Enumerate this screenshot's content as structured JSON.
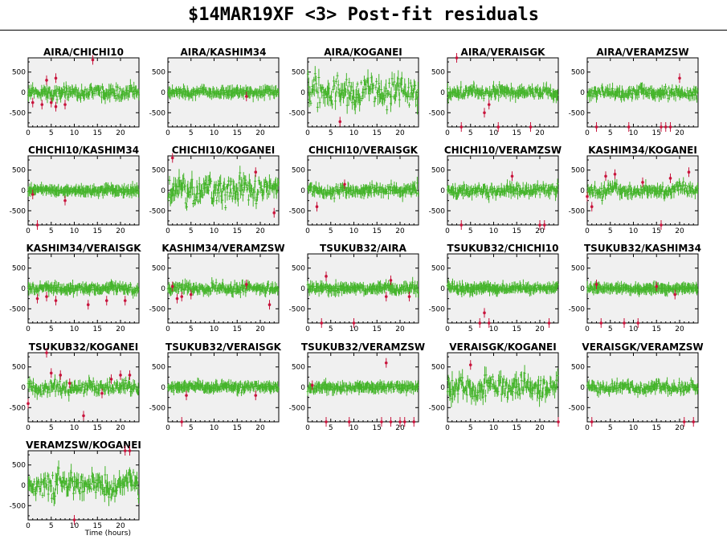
{
  "title": "$14MAR19XF <3> Post-fit residuals",
  "colors": {
    "background": "#ffffff",
    "panel_fill": "#f0f0f0",
    "residual_points": "#44b42a",
    "outlier_points": "#c8143c",
    "axis": "#000000"
  },
  "chart_data": [
    {
      "type": "scatter",
      "title": "AIRA/CHICHI10",
      "xlim": [
        0,
        24
      ],
      "ylim": [
        -850,
        850
      ],
      "xticks": [
        "0",
        "5",
        "10",
        "15",
        "20"
      ],
      "yticks": [
        "500",
        "0",
        "-500"
      ],
      "noise": 120,
      "outliers": [
        [
          1,
          -250
        ],
        [
          3,
          -300
        ],
        [
          4,
          300
        ],
        [
          5,
          -250
        ],
        [
          6,
          350
        ],
        [
          6,
          -350
        ],
        [
          8,
          -300
        ],
        [
          14,
          800
        ]
      ]
    },
    {
      "type": "scatter",
      "title": "AIRA/KASHIM34",
      "xlim": [
        0,
        24
      ],
      "ylim": [
        -850,
        850
      ],
      "xticks": [
        "0",
        "5",
        "10",
        "15",
        "20"
      ],
      "yticks": [
        "500",
        "0",
        "-500"
      ],
      "noise": 70,
      "outliers": [
        [
          17,
          -100
        ]
      ]
    },
    {
      "type": "scatter",
      "title": "AIRA/KOGANEI",
      "xlim": [
        0,
        24
      ],
      "ylim": [
        -850,
        850
      ],
      "xticks": [
        "0",
        "5",
        "10",
        "15",
        "20"
      ],
      "yticks": [
        "500",
        "0",
        "-500"
      ],
      "noise": 330,
      "outliers": [
        [
          7,
          -720
        ]
      ]
    },
    {
      "type": "scatter",
      "title": "AIRA/VERAISGK",
      "xlim": [
        0,
        24
      ],
      "ylim": [
        -850,
        850
      ],
      "xticks": [
        "0",
        "5",
        "10",
        "15",
        "20"
      ],
      "yticks": [
        "500",
        "0",
        "-500"
      ],
      "noise": 110,
      "outliers": [
        [
          3,
          -850
        ],
        [
          8,
          -500
        ],
        [
          9,
          -300
        ],
        [
          11,
          -850
        ],
        [
          18,
          -850
        ],
        [
          2,
          850
        ]
      ]
    },
    {
      "type": "scatter",
      "title": "AIRA/VERAMZSW",
      "xlim": [
        0,
        24
      ],
      "ylim": [
        -850,
        850
      ],
      "xticks": [
        "0",
        "5",
        "10",
        "15",
        "20"
      ],
      "yticks": [
        "500",
        "0",
        "-500"
      ],
      "noise": 110,
      "outliers": [
        [
          2,
          -850
        ],
        [
          9,
          -850
        ],
        [
          16,
          -850
        ],
        [
          17,
          -850
        ],
        [
          18,
          -850
        ],
        [
          20,
          350
        ]
      ]
    },
    {
      "type": "scatter",
      "title": "CHICHI10/KASHIM34",
      "xlim": [
        0,
        24
      ],
      "ylim": [
        -850,
        850
      ],
      "xticks": [
        "0",
        "5",
        "10",
        "15",
        "20"
      ],
      "yticks": [
        "500",
        "0",
        "-500"
      ],
      "noise": 60,
      "outliers": [
        [
          1,
          -100
        ],
        [
          8,
          -250
        ],
        [
          2,
          -850
        ]
      ]
    },
    {
      "type": "scatter",
      "title": "CHICHI10/KOGANEI",
      "xlim": [
        0,
        24
      ],
      "ylim": [
        -850,
        850
      ],
      "xticks": [
        "0",
        "5",
        "10",
        "15",
        "20"
      ],
      "yticks": [
        "500",
        "0",
        "-500"
      ],
      "noise": 280,
      "outliers": [
        [
          1,
          800
        ],
        [
          19,
          450
        ],
        [
          23,
          -550
        ]
      ]
    },
    {
      "type": "scatter",
      "title": "CHICHI10/VERAISGK",
      "xlim": [
        0,
        24
      ],
      "ylim": [
        -850,
        850
      ],
      "xticks": [
        "0",
        "5",
        "10",
        "15",
        "20"
      ],
      "yticks": [
        "500",
        "0",
        "-500"
      ],
      "noise": 100,
      "outliers": [
        [
          2,
          -400
        ],
        [
          8,
          150
        ]
      ]
    },
    {
      "type": "scatter",
      "title": "CHICHI10/VERAMZSW",
      "xlim": [
        0,
        24
      ],
      "ylim": [
        -850,
        850
      ],
      "xticks": [
        "0",
        "5",
        "10",
        "15",
        "20"
      ],
      "yticks": [
        "500",
        "0",
        "-500"
      ],
      "noise": 100,
      "outliers": [
        [
          3,
          -850
        ],
        [
          14,
          350
        ],
        [
          20,
          -850
        ],
        [
          21,
          -850
        ]
      ]
    },
    {
      "type": "scatter",
      "title": "KASHIM34/KOGANEI",
      "xlim": [
        0,
        24
      ],
      "ylim": [
        -850,
        850
      ],
      "xticks": [
        "0",
        "5",
        "10",
        "15",
        "20"
      ],
      "yticks": [
        "500",
        "0",
        "-500"
      ],
      "noise": 130,
      "outliers": [
        [
          0,
          -150
        ],
        [
          1,
          -400
        ],
        [
          4,
          350
        ],
        [
          6,
          400
        ],
        [
          12,
          200
        ],
        [
          18,
          300
        ],
        [
          22,
          450
        ],
        [
          16,
          -850
        ]
      ]
    },
    {
      "type": "scatter",
      "title": "KASHIM34/VERAISGK",
      "xlim": [
        0,
        24
      ],
      "ylim": [
        -850,
        850
      ],
      "xticks": [
        "0",
        "5",
        "10",
        "15",
        "20"
      ],
      "yticks": [
        "500",
        "0",
        "-500"
      ],
      "noise": 80,
      "outliers": [
        [
          2,
          -250
        ],
        [
          4,
          -200
        ],
        [
          6,
          -300
        ],
        [
          13,
          -400
        ],
        [
          17,
          -300
        ],
        [
          21,
          -300
        ]
      ]
    },
    {
      "type": "scatter",
      "title": "KASHIM34/VERAMZSW",
      "xlim": [
        0,
        24
      ],
      "ylim": [
        -850,
        850
      ],
      "xticks": [
        "0",
        "5",
        "10",
        "15",
        "20"
      ],
      "yticks": [
        "500",
        "0",
        "-500"
      ],
      "noise": 80,
      "outliers": [
        [
          1,
          50
        ],
        [
          2,
          -250
        ],
        [
          3,
          -200
        ],
        [
          5,
          -150
        ],
        [
          17,
          100
        ],
        [
          22,
          -400
        ]
      ]
    },
    {
      "type": "scatter",
      "title": "TSUKUB32/AIRA",
      "xlim": [
        0,
        24
      ],
      "ylim": [
        -850,
        850
      ],
      "xticks": [
        "0",
        "5",
        "10",
        "15",
        "20"
      ],
      "yticks": [
        "500",
        "0",
        "-500"
      ],
      "noise": 90,
      "outliers": [
        [
          4,
          300
        ],
        [
          3,
          -850
        ],
        [
          17,
          -200
        ],
        [
          18,
          200
        ],
        [
          22,
          -200
        ],
        [
          10,
          -850
        ]
      ]
    },
    {
      "type": "scatter",
      "title": "TSUKUB32/CHICHI10",
      "xlim": [
        0,
        24
      ],
      "ylim": [
        -850,
        850
      ],
      "xticks": [
        "0",
        "5",
        "10",
        "15",
        "20"
      ],
      "yticks": [
        "500",
        "0",
        "-500"
      ],
      "noise": 60,
      "outliers": [
        [
          7,
          -850
        ],
        [
          8,
          -600
        ],
        [
          9,
          -850
        ],
        [
          22,
          -850
        ]
      ]
    },
    {
      "type": "scatter",
      "title": "TSUKUB32/KASHIM34",
      "xlim": [
        0,
        24
      ],
      "ylim": [
        -850,
        850
      ],
      "xticks": [
        "0",
        "5",
        "10",
        "15",
        "20"
      ],
      "yticks": [
        "500",
        "0",
        "-500"
      ],
      "noise": 40,
      "outliers": [
        [
          2,
          100
        ],
        [
          3,
          -850
        ],
        [
          8,
          -850
        ],
        [
          11,
          -850
        ],
        [
          15,
          50
        ],
        [
          19,
          -150
        ]
      ]
    },
    {
      "type": "scatter",
      "title": "TSUKUB32/KOGANEI",
      "xlim": [
        0,
        24
      ],
      "ylim": [
        -850,
        850
      ],
      "xticks": [
        "0",
        "5",
        "10",
        "15",
        "20"
      ],
      "yticks": [
        "500",
        "0",
        "-500"
      ],
      "noise": 120,
      "outliers": [
        [
          0,
          -400
        ],
        [
          5,
          350
        ],
        [
          7,
          300
        ],
        [
          9,
          100
        ],
        [
          12,
          -700
        ],
        [
          16,
          -150
        ],
        [
          18,
          200
        ],
        [
          20,
          300
        ],
        [
          22,
          300
        ],
        [
          4,
          850
        ]
      ]
    },
    {
      "type": "scatter",
      "title": "TSUKUB32/VERAISGK",
      "xlim": [
        0,
        24
      ],
      "ylim": [
        -850,
        850
      ],
      "xticks": [
        "0",
        "5",
        "10",
        "15",
        "20"
      ],
      "yticks": [
        "500",
        "0",
        "-500"
      ],
      "noise": 70,
      "outliers": [
        [
          3,
          -850
        ],
        [
          4,
          -200
        ],
        [
          19,
          -200
        ]
      ]
    },
    {
      "type": "scatter",
      "title": "TSUKUB32/VERAMZSW",
      "xlim": [
        0,
        24
      ],
      "ylim": [
        -850,
        850
      ],
      "xticks": [
        "0",
        "5",
        "10",
        "15",
        "20"
      ],
      "yticks": [
        "500",
        "0",
        "-500"
      ],
      "noise": 70,
      "outliers": [
        [
          1,
          50
        ],
        [
          4,
          -850
        ],
        [
          9,
          -850
        ],
        [
          17,
          600
        ],
        [
          16,
          -850
        ],
        [
          18,
          -850
        ],
        [
          20,
          -850
        ],
        [
          21,
          -850
        ],
        [
          23,
          -850
        ]
      ]
    },
    {
      "type": "scatter",
      "title": "VERAISGK/KOGANEI",
      "xlim": [
        0,
        24
      ],
      "ylim": [
        -850,
        850
      ],
      "xticks": [
        "0",
        "5",
        "10",
        "15",
        "20"
      ],
      "yticks": [
        "500",
        "0",
        "-500"
      ],
      "noise": 230,
      "outliers": [
        [
          5,
          550
        ],
        [
          24,
          -850
        ]
      ]
    },
    {
      "type": "scatter",
      "title": "VERAISGK/VERAMZSW",
      "xlim": [
        0,
        24
      ],
      "ylim": [
        -850,
        850
      ],
      "xticks": [
        "0",
        "5",
        "10",
        "15",
        "20"
      ],
      "yticks": [
        "500",
        "0",
        "-500"
      ],
      "noise": 100,
      "outliers": [
        [
          1,
          -850
        ],
        [
          21,
          -850
        ],
        [
          23,
          -850
        ]
      ]
    },
    {
      "type": "scatter",
      "title": "VERAMZSW/KOGANEI",
      "xlim": [
        0,
        24
      ],
      "ylim": [
        -850,
        850
      ],
      "xticks": [
        "0",
        "5",
        "10",
        "15",
        "20"
      ],
      "yticks": [
        "500",
        "0",
        "-500"
      ],
      "xlabel": "Time (hours)",
      "noise": 230,
      "outliers": [
        [
          10,
          -850
        ],
        [
          21,
          850
        ],
        [
          22,
          850
        ]
      ]
    }
  ]
}
